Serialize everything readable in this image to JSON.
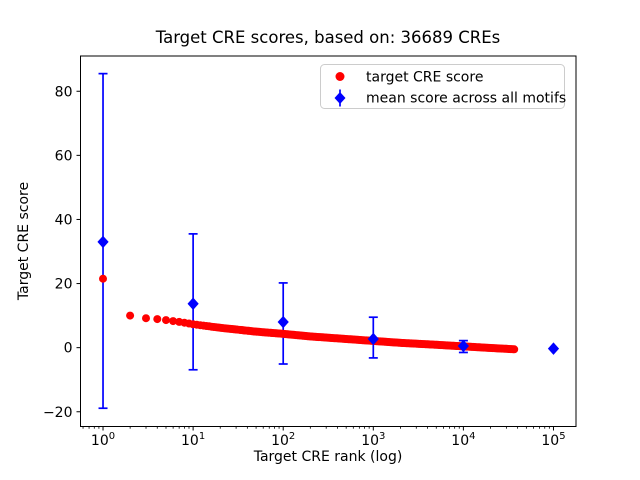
{
  "figure": {
    "background": "#ffffff",
    "frame_color": "#000000"
  },
  "chart_data": {
    "type": "scatter",
    "title": "Target CRE scores, based on: 36689 CREs",
    "xlabel": "Target CRE rank (log)",
    "ylabel": "Target CRE score",
    "x_scale": "log",
    "y_scale": "linear",
    "grid": false,
    "xlim": [
      0.5623,
      177828
    ],
    "ylim": [
      -24.6,
      91.0
    ],
    "xtick_values": [
      1,
      10,
      100,
      1000,
      10000,
      100000
    ],
    "xtick_exponents": [
      0,
      1,
      2,
      3,
      4,
      5
    ],
    "yticks": [
      -20,
      0,
      20,
      40,
      60,
      80
    ],
    "legend_position": "upper right",
    "n_points_noted_in_title": 36689,
    "series": [
      {
        "name": "target CRE score",
        "marker": "circle",
        "color": "#ff0000",
        "sampling_note": "monotonically decreasing score vs rank; dense overlapping dots from rank 1 to 36689, values read from plot",
        "anchors": [
          [
            1,
            21.5
          ],
          [
            2,
            10.0
          ],
          [
            3,
            9.2
          ],
          [
            4,
            8.9
          ],
          [
            5,
            8.6
          ],
          [
            6,
            8.3
          ],
          [
            8,
            7.8
          ],
          [
            10,
            7.3
          ],
          [
            20,
            6.2
          ],
          [
            50,
            5.0
          ],
          [
            100,
            4.3
          ],
          [
            200,
            3.5
          ],
          [
            500,
            2.7
          ],
          [
            1000,
            2.1
          ],
          [
            2000,
            1.5
          ],
          [
            5000,
            0.9
          ],
          [
            10000,
            0.4
          ],
          [
            20000,
            -0.1
          ],
          [
            36689,
            -0.5
          ]
        ],
        "max_rank": 36689
      },
      {
        "name": "mean score across all motifs",
        "marker": "diamond",
        "color": "#0000ff",
        "points": [
          {
            "x": 1,
            "y": 33.0,
            "err_lo": -18.9,
            "err_hi": 85.5
          },
          {
            "x": 10,
            "y": 13.7,
            "err_lo": -6.9,
            "err_hi": 35.5
          },
          {
            "x": 100,
            "y": 8.0,
            "err_lo": -5.1,
            "err_hi": 20.2
          },
          {
            "x": 1000,
            "y": 2.7,
            "err_lo": -3.2,
            "err_hi": 9.5
          },
          {
            "x": 10000,
            "y": 0.5,
            "err_lo": -1.5,
            "err_hi": 2.2
          },
          {
            "x": 100000,
            "y": -0.3,
            "err_lo": -0.3,
            "err_hi": -0.3
          }
        ]
      }
    ]
  }
}
